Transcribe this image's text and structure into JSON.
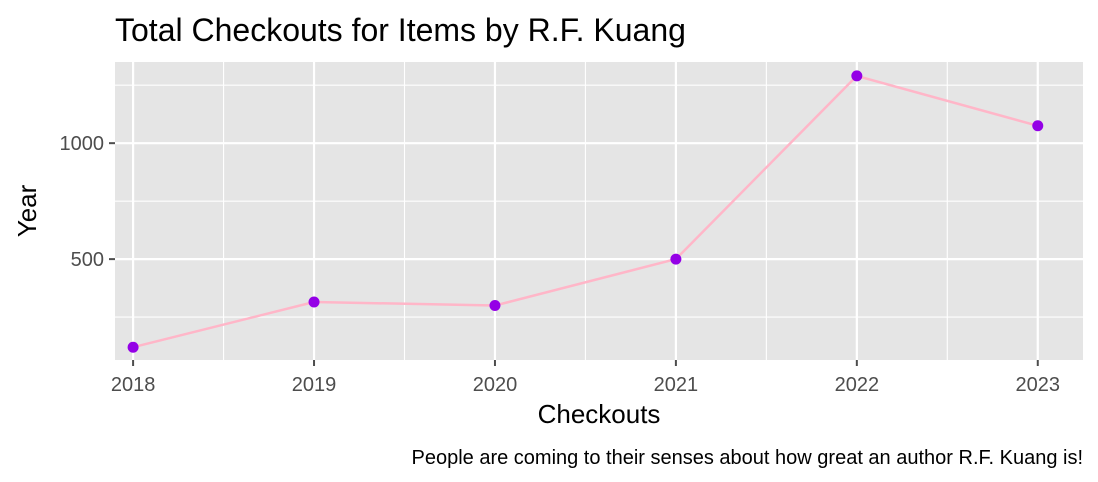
{
  "colors": {
    "panel": "#e5e5e5",
    "grid": "#ffffff",
    "line": "#ffb6c8",
    "point": "#9400e6",
    "tick": "#4d4d4d"
  },
  "chart_data": {
    "type": "line",
    "title": "Total Checkouts for Items by R.F. Kuang",
    "xlabel": "Checkouts",
    "ylabel": "Year",
    "caption": "People are coming to their senses about how great an author R.F. Kuang is!",
    "x": [
      2018,
      2019,
      2020,
      2021,
      2022,
      2023
    ],
    "series": [
      {
        "values": [
          120,
          315,
          300,
          500,
          1290,
          1075
        ]
      }
    ],
    "xlim": [
      2017.9,
      2023.25
    ],
    "ylim": [
      65,
      1350
    ],
    "x_ticks": [
      2018,
      2019,
      2020,
      2021,
      2022,
      2023
    ],
    "x_tick_labels": [
      "2018",
      "2019",
      "2020",
      "2021",
      "2022",
      "2023"
    ],
    "y_ticks": [
      500,
      1000
    ],
    "y_tick_labels": [
      "500",
      "1000"
    ],
    "grid": true,
    "legend": "none"
  }
}
